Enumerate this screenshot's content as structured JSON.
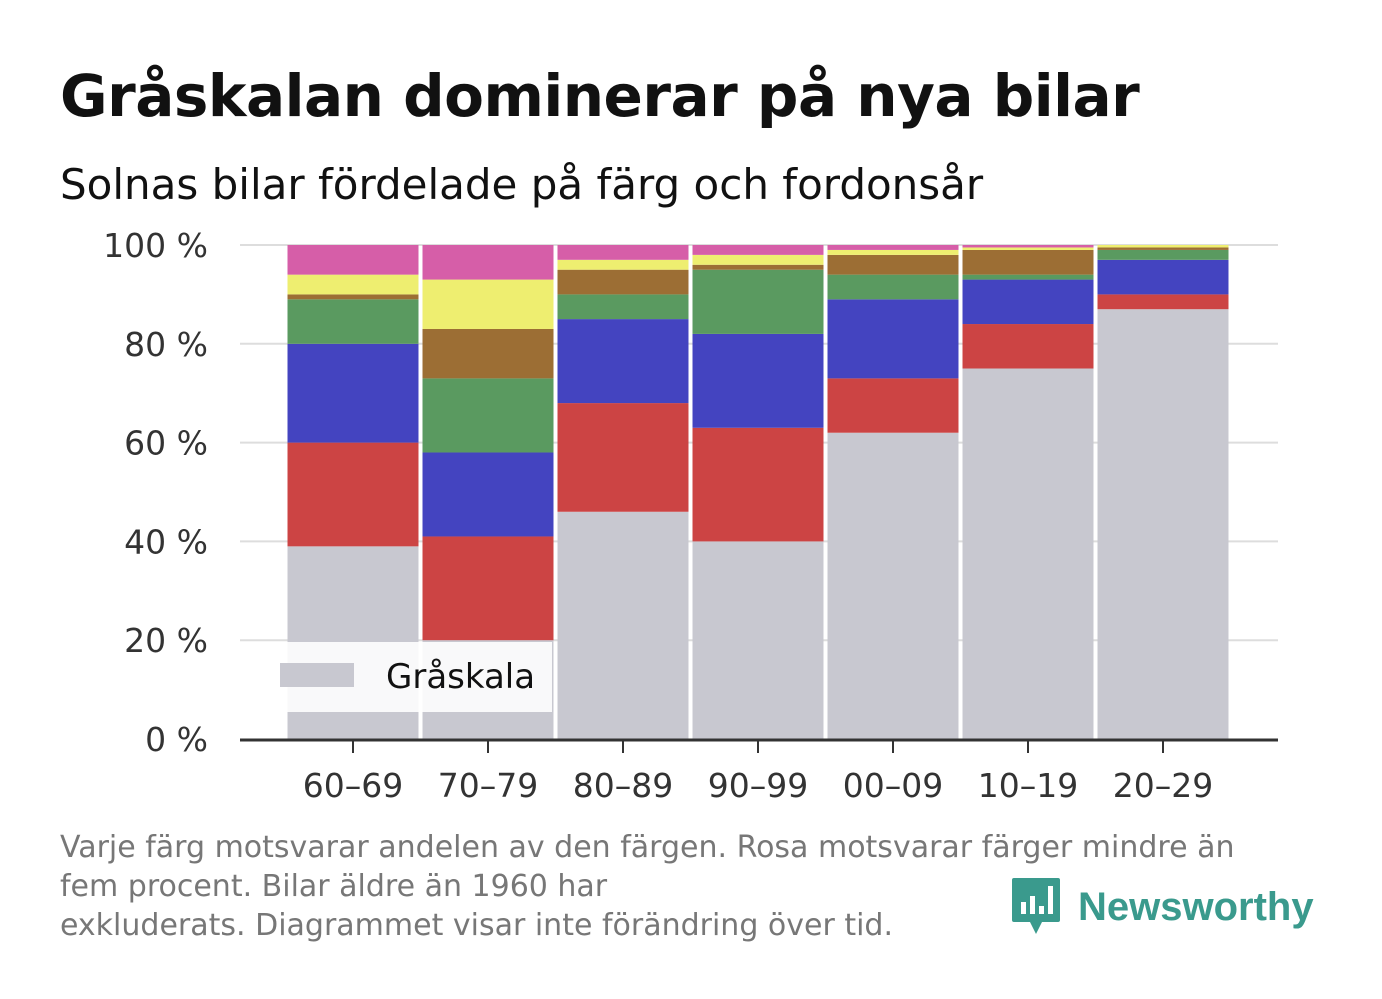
{
  "title": "Gråskalan dominerar på nya bilar",
  "subtitle": "Solnas bilar fördelade på färg och fordonsår",
  "footnote": {
    "lines": [
      "Varje färg motsvarar andelen av den färgen. Rosa motsvarar färger mindre än",
      "fem procent. Bilar äldre än 1960 har",
      "exkluderats. Diagrammet visar inte förändring över tid."
    ]
  },
  "brand": {
    "name": "Newsworthy",
    "icon": "bar-chart-speech-bubble-icon",
    "color": "#3a9a8d"
  },
  "chart_data": {
    "type": "bar",
    "stacked": true,
    "categories": [
      "60–69",
      "70–79",
      "80–89",
      "90–99",
      "00–09",
      "10–19",
      "20–29"
    ],
    "ylim": [
      0,
      100
    ],
    "yticks": [
      0,
      20,
      40,
      60,
      80,
      100
    ],
    "ytick_labels": [
      "0 %",
      "20 %",
      "40 %",
      "60 %",
      "80 %",
      "100 %"
    ],
    "grid": true,
    "legend": {
      "position": "bottom-left",
      "entries": [
        {
          "label": "Gråskala",
          "color": "#c8c8d0"
        }
      ]
    },
    "series": [
      {
        "name": "Gråskala",
        "color": "#c8c8d0",
        "values": [
          39,
          20,
          46,
          40,
          62,
          75,
          87
        ]
      },
      {
        "color": "#cc4444",
        "values": [
          21,
          21,
          22,
          23,
          11,
          9,
          3
        ]
      },
      {
        "color": "#4444c0",
        "values": [
          20,
          17,
          17,
          19,
          16,
          9,
          7
        ]
      },
      {
        "color": "#5a9a60",
        "values": [
          9,
          15,
          5,
          13,
          5,
          1,
          2
        ]
      },
      {
        "color": "#9c6e34",
        "values": [
          1,
          10,
          5,
          1,
          4,
          5,
          0.5
        ]
      },
      {
        "color": "#eeee70",
        "values": [
          4,
          10,
          2,
          2,
          1,
          0.5,
          0.5
        ]
      },
      {
        "color": "#d65ea8",
        "values": [
          6,
          7,
          3,
          2,
          1,
          0.5,
          0
        ]
      }
    ]
  }
}
